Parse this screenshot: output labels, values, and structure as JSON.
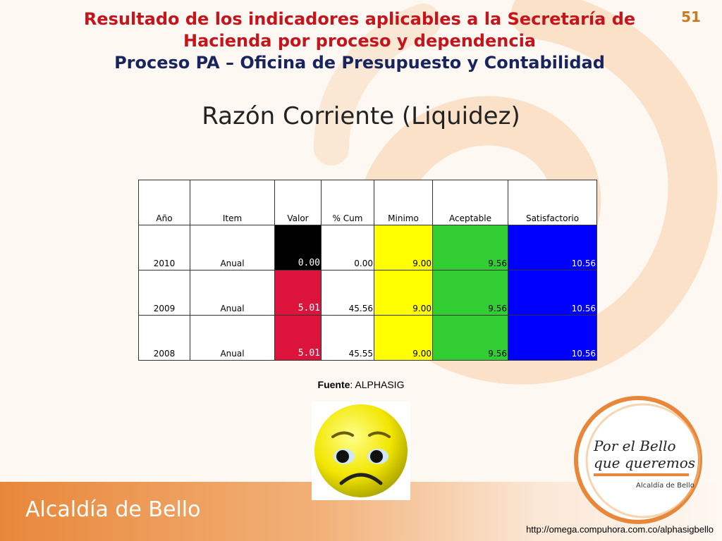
{
  "slide": {
    "number": "51",
    "title_line1": "Resultado de los indicadores aplicables a la Secretaría de",
    "title_line2": "Hacienda por proceso y dependencia",
    "subtitle": "Proceso PA – Oficina de Presupuesto y Contabilidad",
    "heading": "Razón Corriente (Liquidez)"
  },
  "table": {
    "headers": [
      "Año",
      "Item",
      "Valor",
      "% Cum",
      "Minimo",
      "Aceptable",
      "Satisfactorio"
    ],
    "rows": [
      {
        "ano": "2010",
        "item": "Anual",
        "valor": "0.00",
        "cum": "0.00",
        "minimo": "9.00",
        "aceptable": "9.56",
        "satisfactorio": "10.56",
        "valor_color": "#000000"
      },
      {
        "ano": "2009",
        "item": "Anual",
        "valor": "5.01",
        "cum": "45.56",
        "minimo": "9.00",
        "aceptable": "9.56",
        "satisfactorio": "10.56",
        "valor_color": "#dc143c"
      },
      {
        "ano": "2008",
        "item": "Anual",
        "valor": "5.01",
        "cum": "45.55",
        "minimo": "9.00",
        "aceptable": "9.56",
        "satisfactorio": "10.56",
        "valor_color": "#dc143c"
      }
    ],
    "colors": {
      "minimo": "#ffff00",
      "aceptable": "#32cd32",
      "satisfactorio": "#0000ff"
    }
  },
  "fuente": {
    "label": "Fuente",
    "value": ": ALPHASIG"
  },
  "smiley": {
    "icon": "sad-face-icon"
  },
  "footer": {
    "brand": "Alcaldía de Bello",
    "url": "http://omega.compuhora.com.co/alphasigbello",
    "logo_line1": "Por el Bello",
    "logo_line2": "que queremos",
    "logo_small": "Alcaldía de Bello"
  }
}
